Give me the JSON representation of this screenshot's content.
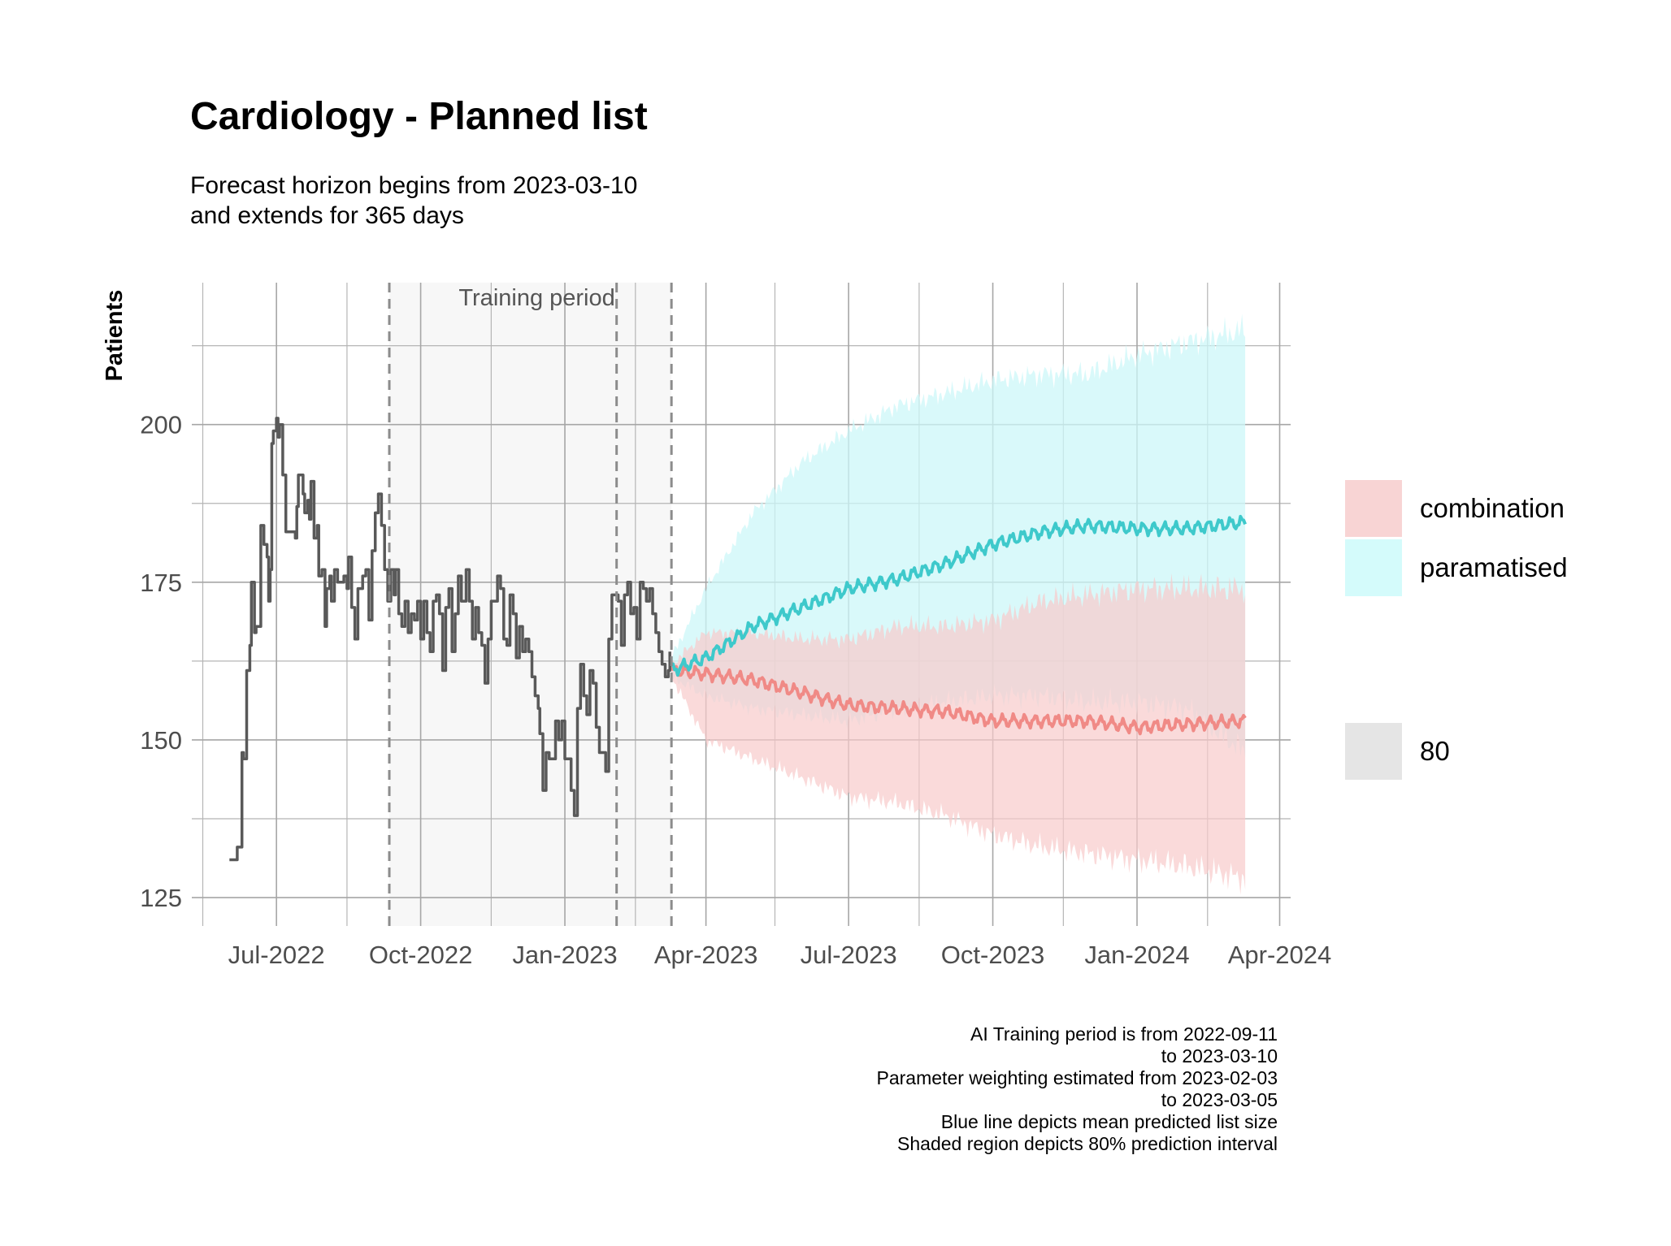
{
  "chart_data": {
    "type": "line",
    "title": "Cardiology - Planned list",
    "subtitle_lines": [
      "Forecast horizon begins from 2023-03-10",
      "and extends for 365 days"
    ],
    "xlabel": "",
    "ylabel": "Patients",
    "x_tick_labels": [
      "Jul-2022",
      "Oct-2022",
      "Jan-2023",
      "Apr-2023",
      "Jul-2023",
      "Oct-2023",
      "Jan-2024",
      "Apr-2024"
    ],
    "x_ticks": [
      "2022-07-01",
      "2022-10-01",
      "2023-01-01",
      "2023-04-01",
      "2023-07-01",
      "2023-10-01",
      "2024-01-01",
      "2024-04-01"
    ],
    "x_minor_ticks": [
      "2022-05-15",
      "2022-08-15",
      "2022-11-15",
      "2023-02-15",
      "2023-05-15",
      "2023-08-15",
      "2023-11-15",
      "2024-02-15"
    ],
    "xlim": [
      "2022-05-08",
      "2024-04-08"
    ],
    "y_ticks": [
      125,
      150,
      175,
      200
    ],
    "ylim": [
      120.5,
      222.5
    ],
    "grid": true,
    "shaded_region": {
      "start": "2022-09-11",
      "end": "2023-03-10",
      "label": "Training period"
    },
    "vlines": [
      "2022-09-11",
      "2023-02-03",
      "2023-03-10"
    ],
    "observed": {
      "color": "#595959",
      "points": [
        [
          "2022-06-01",
          131
        ],
        [
          "2022-06-04",
          131
        ],
        [
          "2022-06-06",
          133
        ],
        [
          "2022-06-08",
          133
        ],
        [
          "2022-06-09",
          148
        ],
        [
          "2022-06-10",
          147
        ],
        [
          "2022-06-12",
          161
        ],
        [
          "2022-06-14",
          165
        ],
        [
          "2022-06-15",
          175
        ],
        [
          "2022-06-17",
          167
        ],
        [
          "2022-06-18",
          168
        ],
        [
          "2022-06-21",
          184
        ],
        [
          "2022-06-23",
          181
        ],
        [
          "2022-06-25",
          179
        ],
        [
          "2022-06-26",
          172
        ],
        [
          "2022-06-27",
          177
        ],
        [
          "2022-06-28",
          197
        ],
        [
          "2022-06-29",
          199
        ],
        [
          "2022-07-01",
          201
        ],
        [
          "2022-07-02",
          198
        ],
        [
          "2022-07-03",
          200
        ],
        [
          "2022-07-05",
          192
        ],
        [
          "2022-07-07",
          183
        ],
        [
          "2022-07-11",
          183
        ],
        [
          "2022-07-13",
          182
        ],
        [
          "2022-07-14",
          187
        ],
        [
          "2022-07-15",
          192
        ],
        [
          "2022-07-18",
          189
        ],
        [
          "2022-07-19",
          186
        ],
        [
          "2022-07-21",
          188
        ],
        [
          "2022-07-22",
          185
        ],
        [
          "2022-07-23",
          191
        ],
        [
          "2022-07-25",
          182
        ],
        [
          "2022-07-27",
          184
        ],
        [
          "2022-07-28",
          176
        ],
        [
          "2022-07-30",
          177
        ],
        [
          "2022-08-01",
          168
        ],
        [
          "2022-08-02",
          174
        ],
        [
          "2022-08-04",
          176
        ],
        [
          "2022-08-05",
          172
        ],
        [
          "2022-08-07",
          177
        ],
        [
          "2022-08-09",
          175
        ],
        [
          "2022-08-11",
          175
        ],
        [
          "2022-08-13",
          176
        ],
        [
          "2022-08-15",
          174
        ],
        [
          "2022-08-16",
          179
        ],
        [
          "2022-08-18",
          171
        ],
        [
          "2022-08-20",
          166
        ],
        [
          "2022-08-22",
          174
        ],
        [
          "2022-08-25",
          176
        ],
        [
          "2022-08-27",
          177
        ],
        [
          "2022-08-29",
          169
        ],
        [
          "2022-08-31",
          180
        ],
        [
          "2022-09-02",
          186
        ],
        [
          "2022-09-04",
          189
        ],
        [
          "2022-09-06",
          184
        ],
        [
          "2022-09-08",
          177
        ],
        [
          "2022-09-10",
          172
        ],
        [
          "2022-09-12",
          177
        ],
        [
          "2022-09-14",
          173
        ],
        [
          "2022-09-15",
          177
        ],
        [
          "2022-09-17",
          170
        ],
        [
          "2022-09-19",
          168
        ],
        [
          "2022-09-21",
          172
        ],
        [
          "2022-09-23",
          167
        ],
        [
          "2022-09-25",
          170
        ],
        [
          "2022-09-27",
          169
        ],
        [
          "2022-09-29",
          172
        ],
        [
          "2022-10-01",
          166
        ],
        [
          "2022-10-03",
          172
        ],
        [
          "2022-10-05",
          167
        ],
        [
          "2022-10-07",
          164
        ],
        [
          "2022-10-09",
          172
        ],
        [
          "2022-10-11",
          173
        ],
        [
          "2022-10-13",
          170
        ],
        [
          "2022-10-15",
          161
        ],
        [
          "2022-10-17",
          171
        ],
        [
          "2022-10-19",
          174
        ],
        [
          "2022-10-21",
          164
        ],
        [
          "2022-10-23",
          170
        ],
        [
          "2022-10-25",
          176
        ],
        [
          "2022-10-27",
          172
        ],
        [
          "2022-10-30",
          177
        ],
        [
          "2022-11-01",
          172
        ],
        [
          "2022-11-03",
          166
        ],
        [
          "2022-11-05",
          171
        ],
        [
          "2022-11-07",
          167
        ],
        [
          "2022-11-09",
          165
        ],
        [
          "2022-11-11",
          159
        ],
        [
          "2022-11-13",
          166
        ],
        [
          "2022-11-15",
          172
        ],
        [
          "2022-11-17",
          172
        ],
        [
          "2022-11-19",
          176
        ],
        [
          "2022-11-21",
          174
        ],
        [
          "2022-11-23",
          166
        ],
        [
          "2022-11-25",
          165
        ],
        [
          "2022-11-27",
          173
        ],
        [
          "2022-11-29",
          170
        ],
        [
          "2022-12-01",
          163
        ],
        [
          "2022-12-03",
          168
        ],
        [
          "2022-12-05",
          164
        ],
        [
          "2022-12-07",
          166
        ],
        [
          "2022-12-09",
          164
        ],
        [
          "2022-12-11",
          160
        ],
        [
          "2022-12-13",
          157
        ],
        [
          "2022-12-15",
          155
        ],
        [
          "2022-12-16",
          151
        ],
        [
          "2022-12-18",
          142
        ],
        [
          "2022-12-20",
          148
        ],
        [
          "2022-12-22",
          147
        ],
        [
          "2022-12-24",
          147
        ],
        [
          "2022-12-26",
          153
        ],
        [
          "2022-12-28",
          150
        ],
        [
          "2022-12-30",
          153
        ],
        [
          "2023-01-01",
          147
        ],
        [
          "2023-01-03",
          147
        ],
        [
          "2023-01-05",
          142
        ],
        [
          "2023-01-07",
          138
        ],
        [
          "2023-01-09",
          155
        ],
        [
          "2023-01-11",
          162
        ],
        [
          "2023-01-13",
          157
        ],
        [
          "2023-01-15",
          154
        ],
        [
          "2023-01-17",
          161
        ],
        [
          "2023-01-19",
          159
        ],
        [
          "2023-01-21",
          152
        ],
        [
          "2023-01-23",
          148
        ],
        [
          "2023-01-25",
          148
        ],
        [
          "2023-01-27",
          145
        ],
        [
          "2023-01-29",
          166
        ],
        [
          "2023-01-31",
          173
        ],
        [
          "2023-02-02",
          173
        ],
        [
          "2023-02-04",
          172
        ],
        [
          "2023-02-06",
          165
        ],
        [
          "2023-02-08",
          173
        ],
        [
          "2023-02-10",
          175
        ],
        [
          "2023-02-12",
          170
        ],
        [
          "2023-02-14",
          171
        ],
        [
          "2023-02-16",
          166
        ],
        [
          "2023-02-18",
          175
        ],
        [
          "2023-02-20",
          174
        ],
        [
          "2023-02-22",
          172
        ],
        [
          "2023-02-24",
          174
        ],
        [
          "2023-02-26",
          170
        ],
        [
          "2023-02-28",
          167
        ],
        [
          "2023-03-02",
          164
        ],
        [
          "2023-03-04",
          162
        ],
        [
          "2023-03-06",
          160
        ],
        [
          "2023-03-08",
          161
        ],
        [
          "2023-03-09",
          164
        ]
      ]
    },
    "series": [
      {
        "name": "combination",
        "color": "#f08a86",
        "band_color": "#f8cbcb",
        "mean": [
          [
            "2023-03-10",
            161
          ],
          [
            "2023-04-01",
            160.5
          ],
          [
            "2023-05-01",
            159.5
          ],
          [
            "2023-06-01",
            157.5
          ],
          [
            "2023-07-01",
            155.5
          ],
          [
            "2023-08-01",
            155
          ],
          [
            "2023-09-01",
            154.5
          ],
          [
            "2023-10-01",
            153
          ],
          [
            "2023-11-01",
            153
          ],
          [
            "2023-12-01",
            153
          ],
          [
            "2024-01-01",
            152
          ],
          [
            "2024-02-01",
            152.5
          ],
          [
            "2024-03-10",
            153
          ]
        ],
        "lower": [
          [
            "2023-03-10",
            160
          ],
          [
            "2023-04-01",
            150
          ],
          [
            "2023-05-01",
            147
          ],
          [
            "2023-06-01",
            144
          ],
          [
            "2023-07-01",
            141
          ],
          [
            "2023-08-01",
            140
          ],
          [
            "2023-09-01",
            138
          ],
          [
            "2023-10-01",
            135
          ],
          [
            "2023-11-01",
            133
          ],
          [
            "2023-12-01",
            132
          ],
          [
            "2024-01-01",
            131
          ],
          [
            "2024-02-01",
            130
          ],
          [
            "2024-03-10",
            128
          ]
        ],
        "upper": [
          [
            "2023-03-10",
            162
          ],
          [
            "2023-04-01",
            167
          ],
          [
            "2023-05-01",
            167
          ],
          [
            "2023-06-01",
            166
          ],
          [
            "2023-07-01",
            166
          ],
          [
            "2023-08-01",
            168
          ],
          [
            "2023-09-01",
            168
          ],
          [
            "2023-10-01",
            169
          ],
          [
            "2023-11-01",
            172
          ],
          [
            "2023-12-01",
            173
          ],
          [
            "2024-01-01",
            174
          ],
          [
            "2024-02-01",
            174
          ],
          [
            "2024-03-10",
            174
          ]
        ]
      },
      {
        "name": "paramatised",
        "color": "#3ec9cb",
        "band_color": "#ccf7f8",
        "mean": [
          [
            "2023-03-10",
            161
          ],
          [
            "2023-04-01",
            163
          ],
          [
            "2023-05-01",
            168
          ],
          [
            "2023-06-01",
            171
          ],
          [
            "2023-07-01",
            174
          ],
          [
            "2023-08-01",
            175.5
          ],
          [
            "2023-09-01",
            178
          ],
          [
            "2023-10-01",
            181
          ],
          [
            "2023-11-01",
            183
          ],
          [
            "2023-12-01",
            184
          ],
          [
            "2024-01-01",
            183.5
          ],
          [
            "2024-02-01",
            183.5
          ],
          [
            "2024-03-10",
            184.5
          ]
        ],
        "lower": [
          [
            "2023-03-10",
            160
          ],
          [
            "2023-04-01",
            157
          ],
          [
            "2023-05-01",
            155
          ],
          [
            "2023-06-01",
            154
          ],
          [
            "2023-07-01",
            153
          ],
          [
            "2023-08-01",
            155
          ],
          [
            "2023-09-01",
            156
          ],
          [
            "2023-10-01",
            157
          ],
          [
            "2023-11-01",
            157
          ],
          [
            "2023-12-01",
            156
          ],
          [
            "2024-01-01",
            156
          ],
          [
            "2024-02-01",
            155
          ],
          [
            "2024-03-10",
            148
          ]
        ],
        "upper": [
          [
            "2023-03-10",
            163
          ],
          [
            "2023-04-01",
            174
          ],
          [
            "2023-05-01",
            186
          ],
          [
            "2023-06-01",
            194
          ],
          [
            "2023-07-01",
            199
          ],
          [
            "2023-08-01",
            203
          ],
          [
            "2023-09-01",
            205
          ],
          [
            "2023-10-01",
            207
          ],
          [
            "2023-11-01",
            208
          ],
          [
            "2023-12-01",
            208
          ],
          [
            "2024-01-01",
            211
          ],
          [
            "2024-02-01",
            213
          ],
          [
            "2024-03-10",
            215
          ]
        ]
      }
    ],
    "legend": {
      "placement": "right",
      "entries": [
        {
          "label": "combination",
          "color": "#f8d4d4"
        },
        {
          "label": "paramatised",
          "color": "#d4fbfb"
        }
      ],
      "interval_entry": {
        "label": "80",
        "color": "#e5e5e5"
      }
    },
    "caption_lines": [
      "AI Training period is from 2022-09-11",
      "to 2023-03-10",
      "Parameter weighting estimated from 2023-02-03",
      "to 2023-03-05",
      "Blue line depicts mean predicted list size",
      "Shaded region depicts 80% prediction interval"
    ]
  }
}
